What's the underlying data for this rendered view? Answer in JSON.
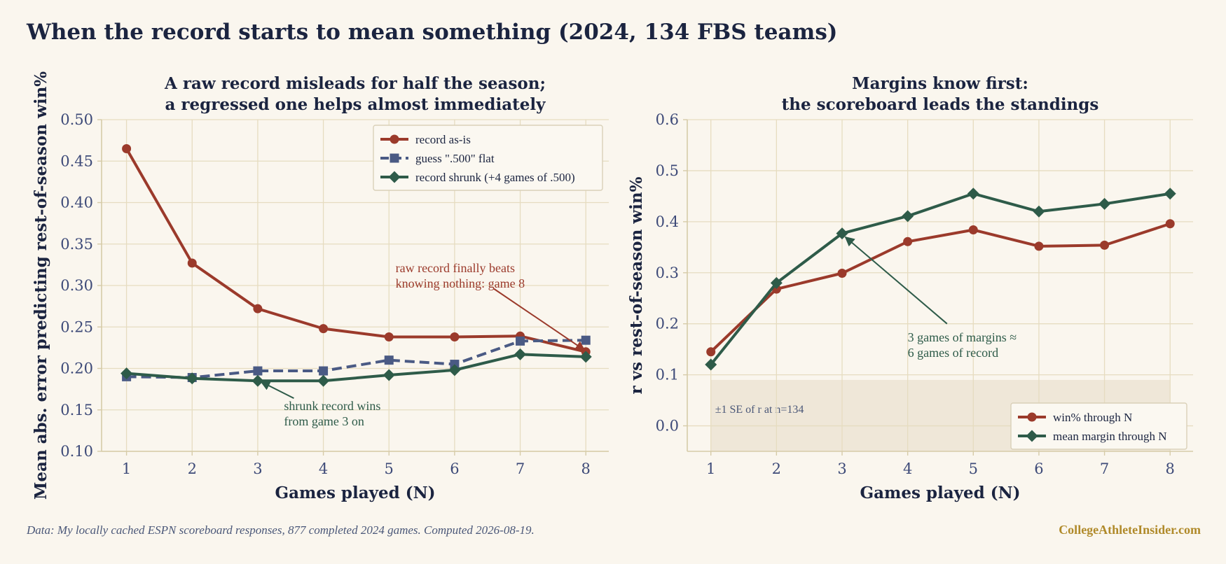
{
  "page": {
    "title": "When the record starts to mean something (2024, 134 FBS teams)",
    "source_note": "Data: My locally cached ESPN scoreboard responses, 877 completed 2024 games. Computed 2026-08-19.",
    "brand": "CollegeAthleteInsider.com"
  },
  "colors": {
    "background": "#faf6ee",
    "grid": "#e6dcc0",
    "axis": "#d6cba8",
    "red": "#9b3a2b",
    "navy": "#4a5a84",
    "green": "#2e5b49",
    "band": "#efe7d8",
    "text": "#1b2440",
    "tick": "#3d4a78",
    "brand": "#b08a2a"
  },
  "chart_data": [
    {
      "type": "line",
      "title": "A raw record misleads for half the season;\na regressed one helps almost immediately",
      "xlabel": "Games played (N)",
      "ylabel": "Mean abs. error predicting rest-of-season win%",
      "x": [
        1,
        2,
        3,
        4,
        5,
        6,
        7,
        8
      ],
      "xlim": [
        0.62,
        8.35
      ],
      "ylim": [
        0.1,
        0.5
      ],
      "yticks": [
        0.1,
        0.15,
        0.2,
        0.25,
        0.3,
        0.35,
        0.4,
        0.45,
        0.5
      ],
      "ytick_labels": [
        "0.10",
        "0.15",
        "0.20",
        "0.25",
        "0.30",
        "0.35",
        "0.40",
        "0.45",
        "0.50"
      ],
      "grid": true,
      "legend_position": "top-right",
      "series": [
        {
          "name": "record as-is",
          "values": [
            0.465,
            0.327,
            0.272,
            0.248,
            0.238,
            0.238,
            0.239,
            0.22
          ],
          "color": "#9b3a2b",
          "marker": "circle",
          "dashed": false
        },
        {
          "name": "guess \".500\" flat",
          "values": [
            0.19,
            0.189,
            0.197,
            0.197,
            0.21,
            0.205,
            0.233,
            0.234
          ],
          "color": "#4a5a84",
          "marker": "square",
          "dashed": true
        },
        {
          "name": "record shrunk (+4 games of .500)",
          "values": [
            0.194,
            0.188,
            0.185,
            0.185,
            0.192,
            0.198,
            0.217,
            0.214
          ],
          "color": "#2e5b49",
          "marker": "diamond",
          "dashed": false
        }
      ],
      "annotations": [
        {
          "text": "raw record finally beats\nknowing nothing: game 8",
          "color": "#9b3a2b",
          "text_x": 5.1,
          "text_y": 0.316,
          "arrow_from": [
            6.6,
            0.296
          ],
          "arrow_to": [
            7.98,
            0.222
          ]
        },
        {
          "text": "shrunk record wins\nfrom game 3 on",
          "color": "#2e5b49",
          "text_x": 3.4,
          "text_y": 0.15,
          "arrow_from": [
            3.55,
            0.164
          ],
          "arrow_to": [
            3.05,
            0.184
          ]
        }
      ]
    },
    {
      "type": "line",
      "title": "Margins know first:\nthe scoreboard leads the standings",
      "xlabel": "Games played (N)",
      "ylabel": "r vs rest-of-season win%",
      "x": [
        1,
        2,
        3,
        4,
        5,
        6,
        7,
        8
      ],
      "xlim": [
        0.64,
        8.35
      ],
      "ylim": [
        -0.05,
        0.6
      ],
      "yticks": [
        0.0,
        0.1,
        0.2,
        0.3,
        0.4,
        0.5,
        0.6
      ],
      "ytick_labels": [
        "0.0",
        "0.1",
        "0.2",
        "0.3",
        "0.4",
        "0.5",
        "0.6"
      ],
      "grid": true,
      "legend_position": "bottom-right",
      "band": {
        "y0": -0.05,
        "y1": 0.09,
        "x0": 1,
        "x1": 8,
        "label": "±1 SE of r at n=134"
      },
      "series": [
        {
          "name": "win% through N",
          "values": [
            0.145,
            0.268,
            0.299,
            0.361,
            0.384,
            0.352,
            0.354,
            0.396
          ],
          "color": "#9b3a2b",
          "marker": "circle",
          "dashed": false
        },
        {
          "name": "mean margin through N",
          "values": [
            0.12,
            0.28,
            0.377,
            0.411,
            0.455,
            0.42,
            0.435,
            0.455
          ],
          "color": "#2e5b49",
          "marker": "diamond",
          "dashed": false
        }
      ],
      "annotations": [
        {
          "text": "3 games of margins ≈\n6 games of record",
          "color": "#2e5b49",
          "text_x": 4.0,
          "text_y": 0.165,
          "arrow_from": [
            4.6,
            0.2
          ],
          "arrow_to": [
            3.05,
            0.37
          ]
        }
      ]
    }
  ]
}
